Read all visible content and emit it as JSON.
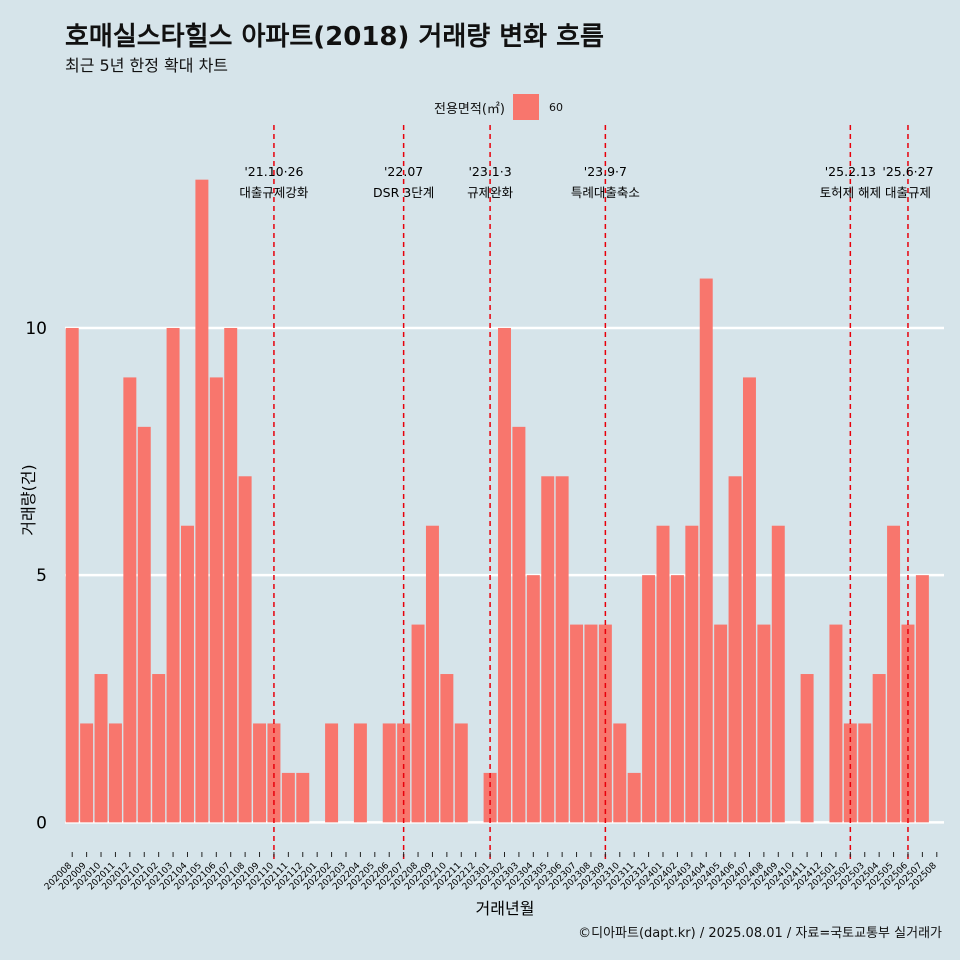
{
  "chart_data": {
    "type": "bar",
    "title": "호매실스타힐스 아파트(2018) 거래량 변화 흐름",
    "subtitle": "최근 5년 한정 확대 차트",
    "xlabel": "거래년월",
    "ylabel": "거래량(건)",
    "ylim": [
      -0.6,
      13.6
    ],
    "yticks": [
      0,
      5,
      10
    ],
    "grid": "horizontal",
    "legend": {
      "title": "전용면적(㎡)",
      "position": "top",
      "entries": [
        {
          "label": "60",
          "color": "#f8766d"
        }
      ]
    },
    "bar_color": "#f8766d",
    "categories": [
      "202008",
      "202009",
      "202010",
      "202011",
      "202012",
      "202101",
      "202102",
      "202103",
      "202104",
      "202105",
      "202106",
      "202107",
      "202108",
      "202109",
      "202110",
      "202111",
      "202112",
      "202201",
      "202202",
      "202203",
      "202204",
      "202205",
      "202206",
      "202207",
      "202208",
      "202209",
      "202210",
      "202211",
      "202212",
      "202301",
      "202302",
      "202303",
      "202304",
      "202305",
      "202306",
      "202307",
      "202308",
      "202309",
      "202310",
      "202311",
      "202312",
      "202401",
      "202402",
      "202403",
      "202404",
      "202405",
      "202406",
      "202407",
      "202408",
      "202409",
      "202410",
      "202411",
      "202412",
      "202501",
      "202502",
      "202503",
      "202504",
      "202505",
      "202506",
      "202507",
      "202508"
    ],
    "series": [
      {
        "name": "60",
        "values": [
          10,
          2,
          3,
          2,
          9,
          8,
          3,
          10,
          6,
          13,
          9,
          10,
          7,
          2,
          2,
          1,
          1,
          0,
          2,
          0,
          2,
          0,
          2,
          2,
          4,
          6,
          3,
          2,
          0,
          1,
          10,
          8,
          5,
          7,
          7,
          4,
          4,
          4,
          2,
          1,
          5,
          6,
          5,
          6,
          11,
          4,
          7,
          9,
          4,
          6,
          0,
          3,
          0,
          4,
          2,
          2,
          3,
          6,
          4,
          5,
          0
        ]
      }
    ],
    "annotations": [
      {
        "date": "'21.10·26",
        "text": "대출규제강화",
        "x_category": "202110"
      },
      {
        "date": "'22.07",
        "text": "DSR 3단계",
        "x_category": "202207"
      },
      {
        "date": "'23.1·3",
        "text": "규제완화",
        "x_category": "202301"
      },
      {
        "date": "'23.9·7",
        "text": "특례대출축소",
        "x_category": "202309"
      },
      {
        "date": "'25.2.13",
        "text": "토허제 해제",
        "x_category": "202502"
      },
      {
        "date": "'25.6·27",
        "text": "대출규제",
        "x_category": "202506"
      }
    ]
  },
  "caption": "©디아파트(dapt.kr) / 2025.08.01 / 자료=국토교통부 실거래가"
}
